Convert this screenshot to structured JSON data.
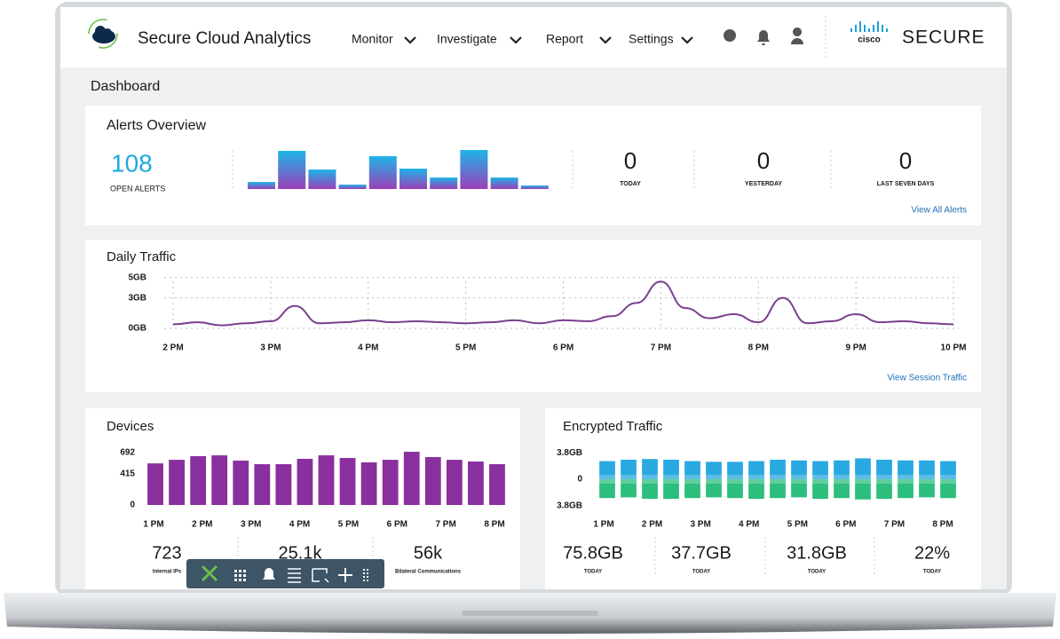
{
  "header": {
    "app_title": "Secure Cloud Analytics",
    "nav": [
      "Monitor",
      "Investigate",
      "Report",
      "Settings"
    ],
    "brand_logo": "cisco",
    "brand": "SECURE"
  },
  "page_title": "Dashboard",
  "alerts": {
    "title": "Alerts Overview",
    "open_alerts": "108",
    "open_label": "OPEN ALERTS",
    "bars": [
      8,
      43,
      22,
      5,
      37,
      23,
      13,
      44,
      13,
      4
    ],
    "stats": [
      {
        "value": "0",
        "label": "TODAY"
      },
      {
        "value": "0",
        "label": "YESTERDAY"
      },
      {
        "value": "0",
        "label": "LAST SEVEN DAYS"
      }
    ],
    "link": "View All Alerts"
  },
  "daily_traffic": {
    "title": "Daily Traffic",
    "type": "line",
    "color": "#7b3f8f",
    "x": [
      14,
      14.25,
      14.5,
      14.75,
      15,
      15.25,
      15.5,
      15.75,
      16,
      16.25,
      16.5,
      16.75,
      17,
      17.25,
      17.5,
      17.75,
      18,
      18.25,
      18.5,
      18.75,
      19,
      19.25,
      19.5,
      19.75,
      20,
      20.25,
      20.5,
      20.75,
      21,
      21.25,
      21.5,
      21.75,
      22
    ],
    "values": [
      0.4,
      0.6,
      0.3,
      0.5,
      0.7,
      2.2,
      0.5,
      0.6,
      0.8,
      0.6,
      0.7,
      0.6,
      0.5,
      0.6,
      0.8,
      0.5,
      0.8,
      0.7,
      1.2,
      2.5,
      4.6,
      2.0,
      1.0,
      1.4,
      0.6,
      3.0,
      0.5,
      0.7,
      1.4,
      0.6,
      0.7,
      0.5,
      0.4
    ],
    "xlim": [
      14,
      22
    ],
    "xticks": [
      {
        "value": 14,
        "label": "2 PM"
      },
      {
        "value": 15,
        "label": "3 PM"
      },
      {
        "value": 16,
        "label": "4 PM"
      },
      {
        "value": 17,
        "label": "5 PM"
      },
      {
        "value": 18,
        "label": "6 PM"
      },
      {
        "value": 19,
        "label": "7 PM"
      },
      {
        "value": 20,
        "label": "8 PM"
      },
      {
        "value": 21,
        "label": "9 PM"
      },
      {
        "value": 22,
        "label": "10 PM"
      }
    ],
    "ylim": [
      0,
      5.5
    ],
    "yticks": [
      {
        "value": 0,
        "label": "0GB"
      },
      {
        "value": 3,
        "label": "3GB"
      },
      {
        "value": 5,
        "label": "5GB"
      }
    ],
    "grid": true,
    "link": "View Session Traffic"
  },
  "devices": {
    "title": "Devices",
    "type": "bar",
    "color": "#8a2f9e",
    "values": [
      550,
      597,
      645,
      656,
      586,
      539,
      539,
      610,
      656,
      621,
      563,
      597,
      703,
      633,
      597,
      574,
      539
    ],
    "ylim": [
      0,
      720
    ],
    "yticks": [
      0,
      415,
      692
    ],
    "xlabels": [
      "1 PM",
      "2 PM",
      "3 PM",
      "4 PM",
      "5 PM",
      "6 PM",
      "7 PM",
      "8 PM"
    ],
    "stats": [
      {
        "value": "723",
        "label": "Internal IPs"
      },
      {
        "value": "25.1k"
      },
      {
        "value": "56k",
        "label": "Bilateral Communications"
      }
    ]
  },
  "encrypted": {
    "title": "Encrypted Traffic",
    "type": "bar",
    "series": [
      {
        "color": "#29a9e0",
        "values": [
          2.6,
          2.8,
          2.9,
          2.8,
          2.6,
          2.5,
          2.5,
          2.6,
          2.8,
          2.7,
          2.6,
          2.7,
          3.0,
          2.8,
          2.7,
          2.7,
          2.6
        ]
      },
      {
        "color": "#2dbe7e",
        "values": [
          -2.7,
          -2.6,
          -2.8,
          -2.8,
          -2.7,
          -2.6,
          -2.7,
          -2.8,
          -2.7,
          -2.6,
          -2.8,
          -2.7,
          -2.9,
          -2.8,
          -2.7,
          -2.6,
          -2.7
        ]
      }
    ],
    "ylim": [
      -4.2,
      4.2
    ],
    "yticks": [
      {
        "value": 3.8,
        "label": "3.8GB"
      },
      0,
      {
        "value": -3.8,
        "label": "3.8GB"
      }
    ],
    "xlabels": [
      "1 PM",
      "2 PM",
      "3 PM",
      "4 PM",
      "5 PM",
      "6 PM",
      "7 PM",
      "8 PM"
    ],
    "stats": [
      {
        "value": "75.8GB",
        "label": "TODAY"
      },
      {
        "value": "37.7GB",
        "label": "TODAY"
      },
      {
        "value": "31.8GB",
        "label": "TODAY"
      },
      {
        "value": "22%",
        "label": "TODAY"
      }
    ]
  }
}
